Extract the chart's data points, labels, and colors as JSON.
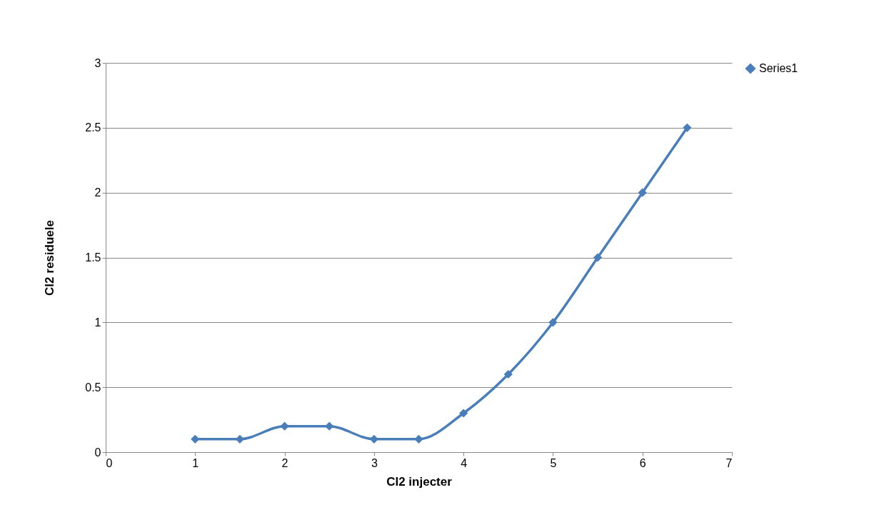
{
  "chart_data": {
    "type": "line",
    "xlabel": "Cl2 injecter",
    "ylabel": "Cl2 residuele",
    "x": [
      1,
      1.5,
      2,
      2.5,
      3,
      3.5,
      4,
      4.5,
      5,
      5.5,
      6,
      6.5
    ],
    "series": [
      {
        "name": "Series1",
        "color": "#4a7ebb",
        "values": [
          0.1,
          0.1,
          0.2,
          0.2,
          0.1,
          0.1,
          0.3,
          0.6,
          1,
          1.5,
          2,
          2.5
        ]
      }
    ],
    "xlim": [
      0,
      7
    ],
    "xticks": [
      0,
      1,
      2,
      3,
      4,
      5,
      6,
      7
    ],
    "ylim": [
      0,
      3
    ],
    "yticks": [
      0,
      0.5,
      1,
      1.5,
      2,
      2.5,
      3
    ],
    "grid": "y",
    "legend": "right",
    "marker": "diamond",
    "line_style": "solid"
  }
}
